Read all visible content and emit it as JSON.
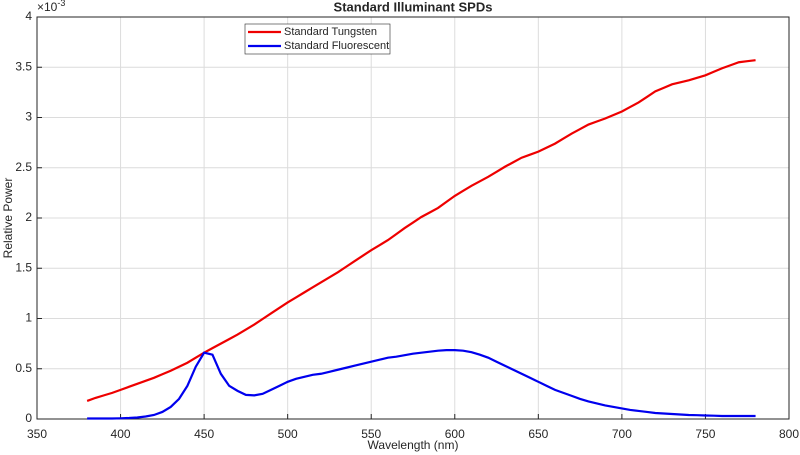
{
  "chart_data": {
    "type": "line",
    "title": "Standard Illuminant SPDs",
    "x_label": "Wavelength (nm)",
    "y_label": "Relative Power",
    "y_exponent": {
      "base": "×10",
      "power": "-3"
    },
    "x": [
      380,
      385,
      390,
      395,
      400,
      405,
      410,
      415,
      420,
      425,
      430,
      435,
      440,
      445,
      450,
      455,
      460,
      465,
      470,
      475,
      480,
      485,
      490,
      495,
      500,
      505,
      510,
      515,
      520,
      525,
      530,
      535,
      540,
      545,
      550,
      555,
      560,
      565,
      570,
      575,
      580,
      585,
      590,
      595,
      600,
      605,
      610,
      615,
      620,
      625,
      630,
      635,
      640,
      645,
      650,
      655,
      660,
      665,
      670,
      675,
      680,
      685,
      690,
      695,
      700,
      705,
      710,
      715,
      720,
      725,
      730,
      735,
      740,
      745,
      750,
      755,
      760,
      765,
      770,
      775,
      780
    ],
    "series": [
      {
        "name": "Standard Tungsten",
        "color": "#ee0000",
        "values": [
          0.18,
          0.21,
          0.235,
          0.26,
          0.29,
          0.32,
          0.35,
          0.38,
          0.41,
          0.445,
          0.48,
          0.52,
          0.56,
          0.61,
          0.66,
          0.705,
          0.75,
          0.795,
          0.84,
          0.89,
          0.94,
          0.995,
          1.05,
          1.105,
          1.16,
          1.21,
          1.26,
          1.31,
          1.36,
          1.41,
          1.46,
          1.515,
          1.57,
          1.625,
          1.68,
          1.73,
          1.78,
          1.84,
          1.9,
          1.955,
          2.01,
          2.055,
          2.1,
          2.16,
          2.22,
          2.27,
          2.32,
          2.365,
          2.41,
          2.46,
          2.51,
          2.555,
          2.6,
          2.63,
          2.66,
          2.7,
          2.74,
          2.79,
          2.84,
          2.885,
          2.93,
          2.96,
          2.99,
          3.025,
          3.06,
          3.105,
          3.15,
          3.205,
          3.26,
          3.295,
          3.33,
          3.35,
          3.37,
          3.395,
          3.42,
          3.455,
          3.49,
          3.52,
          3.55,
          3.56,
          3.57
        ]
      },
      {
        "name": "Standard Fluorescent",
        "color": "#0000ee",
        "values": [
          0.005,
          0.005,
          0.005,
          0.005,
          0.007,
          0.01,
          0.015,
          0.025,
          0.04,
          0.07,
          0.12,
          0.2,
          0.33,
          0.52,
          0.66,
          0.64,
          0.45,
          0.33,
          0.28,
          0.24,
          0.235,
          0.25,
          0.29,
          0.33,
          0.37,
          0.4,
          0.42,
          0.44,
          0.45,
          0.47,
          0.49,
          0.51,
          0.53,
          0.55,
          0.57,
          0.59,
          0.61,
          0.62,
          0.635,
          0.65,
          0.66,
          0.67,
          0.68,
          0.685,
          0.685,
          0.68,
          0.665,
          0.64,
          0.61,
          0.57,
          0.53,
          0.49,
          0.45,
          0.41,
          0.37,
          0.33,
          0.29,
          0.26,
          0.23,
          0.2,
          0.175,
          0.155,
          0.135,
          0.12,
          0.105,
          0.09,
          0.08,
          0.07,
          0.06,
          0.055,
          0.05,
          0.045,
          0.04,
          0.038,
          0.035,
          0.033,
          0.03,
          0.03,
          0.03,
          0.03,
          0.03
        ]
      }
    ],
    "xlim": [
      350,
      800
    ],
    "xticks": [
      350,
      400,
      450,
      500,
      550,
      600,
      650,
      700,
      750,
      800
    ],
    "ylim": [
      0,
      4
    ],
    "yticks": [
      0,
      0.5,
      1,
      1.5,
      2,
      2.5,
      3,
      3.5,
      4
    ],
    "grid": true,
    "legend_loc": "north"
  }
}
